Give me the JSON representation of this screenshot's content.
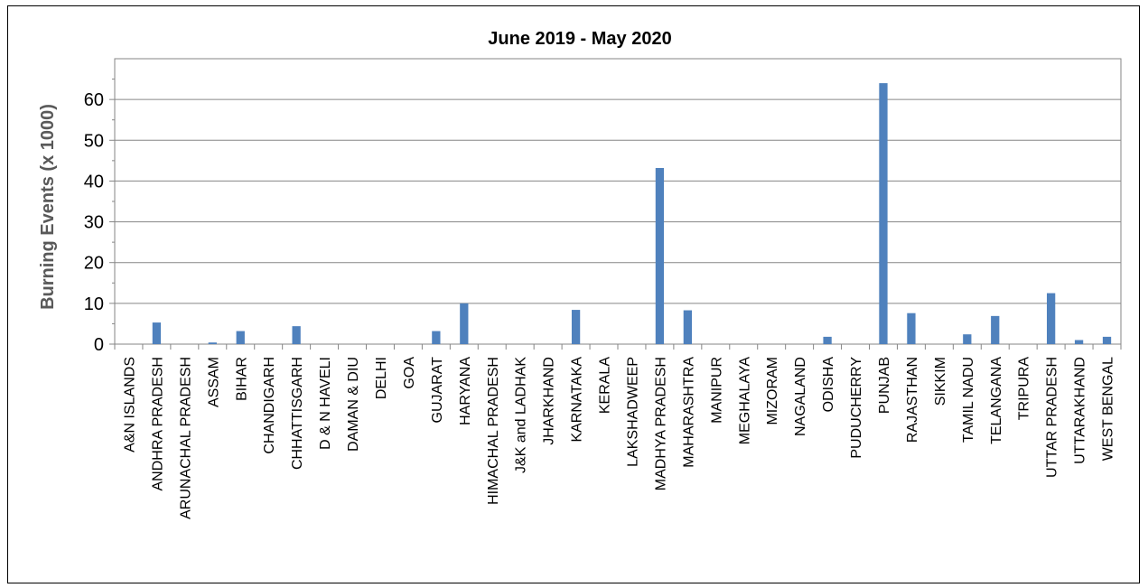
{
  "chart_data": {
    "type": "bar",
    "title": "June 2019 - May 2020",
    "xlabel": "",
    "ylabel": "Burning Events (x 1000)",
    "ylim": [
      0,
      70
    ],
    "yticks": [
      0,
      10,
      20,
      30,
      40,
      50,
      60
    ],
    "grid": true,
    "bar_color": "#4f81bd",
    "categories": [
      "A&N ISLANDS",
      "ANDHRA PRADESH",
      "ARUNACHAL PRADESH",
      "ASSAM",
      "BIHAR",
      "CHANDIGARH",
      "CHHATTISGARH",
      "D & N HAVELI",
      "DAMAN & DIU",
      "DELHI",
      "GOA",
      "GUJARAT",
      "HARYANA",
      "HIMACHAL PRADESH",
      "J&K and LADHAK",
      "JHARKHAND",
      "KARNATAKA",
      "KERALA",
      "LAKSHADWEEP",
      "MADHYA PRADESH",
      "MAHARASHTRA",
      "MANIPUR",
      "MEGHALAYA",
      "MIZORAM",
      "NAGALAND",
      "ODISHA",
      "PUDUCHERRY",
      "PUNJAB",
      "RAJASTHAN",
      "SIKKIM",
      "TAMIL NADU",
      "TELANGANA",
      "TRIPURA",
      "UTTAR PRADESH",
      "UTTARAKHAND",
      "WEST BENGAL"
    ],
    "values": [
      0,
      5.3,
      0,
      0.4,
      3.2,
      0,
      4.4,
      0,
      0,
      0,
      0,
      3.2,
      10.0,
      0,
      0,
      0,
      8.4,
      0,
      0,
      43.2,
      8.3,
      0,
      0,
      0,
      0,
      1.8,
      0,
      64.0,
      7.6,
      0,
      2.4,
      6.9,
      0,
      12.5,
      1.0,
      1.8
    ]
  }
}
